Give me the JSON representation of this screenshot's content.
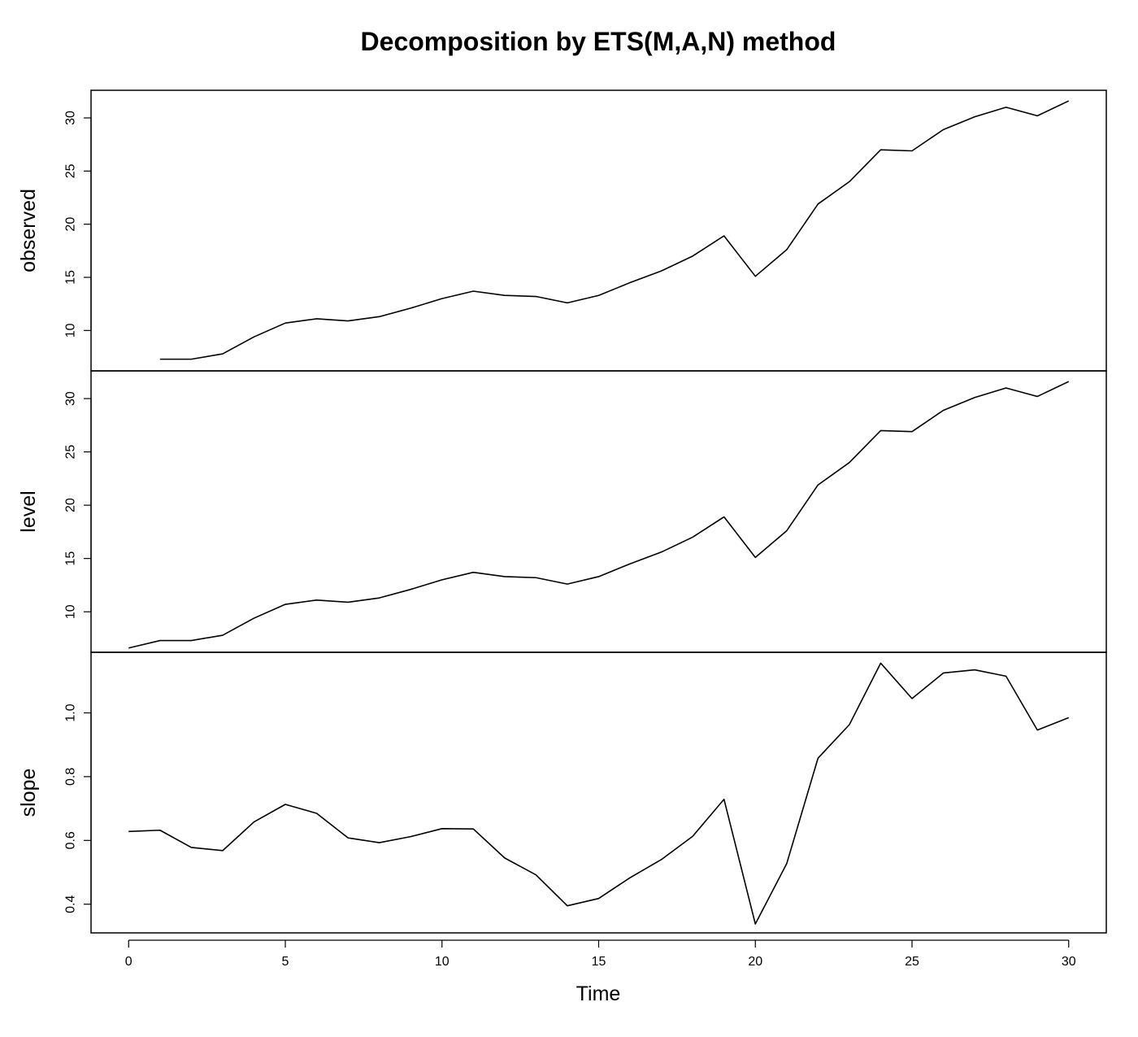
{
  "chart_data": {
    "type": "line",
    "title": "Decomposition by ETS(M,A,N) method",
    "xlabel": "Time",
    "x_ticks": [
      "0",
      "5",
      "10",
      "15",
      "20",
      "25",
      "30"
    ],
    "xlim": [
      -1.2,
      31.2
    ],
    "panels": [
      {
        "name": "observed",
        "ylim": [
          6.2,
          32.6
        ],
        "y_ticks": [
          "10",
          "15",
          "20",
          "25",
          "30"
        ],
        "x": [
          1,
          2,
          3,
          4,
          5,
          6,
          7,
          8,
          9,
          10,
          11,
          12,
          13,
          14,
          15,
          16,
          17,
          18,
          19,
          20,
          21,
          22,
          23,
          24,
          25,
          26,
          27,
          28,
          29,
          30
        ],
        "values": [
          7.3,
          7.3,
          7.8,
          9.4,
          10.7,
          11.1,
          10.9,
          11.3,
          12.1,
          13.0,
          13.7,
          13.3,
          13.2,
          12.6,
          13.3,
          14.5,
          15.6,
          17.0,
          18.9,
          15.1,
          17.6,
          21.9,
          24.0,
          27.0,
          26.9,
          28.9,
          30.1,
          31.0,
          30.2,
          31.6
        ]
      },
      {
        "name": "level",
        "ylim": [
          6.2,
          32.6
        ],
        "y_ticks": [
          "10",
          "15",
          "20",
          "25",
          "30"
        ],
        "x": [
          0,
          1,
          2,
          3,
          4,
          5,
          6,
          7,
          8,
          9,
          10,
          11,
          12,
          13,
          14,
          15,
          16,
          17,
          18,
          19,
          20,
          21,
          22,
          23,
          24,
          25,
          26,
          27,
          28,
          29,
          30
        ],
        "values": [
          6.6,
          7.3,
          7.3,
          7.8,
          9.4,
          10.7,
          11.1,
          10.9,
          11.3,
          12.1,
          13.0,
          13.7,
          13.3,
          13.2,
          12.6,
          13.3,
          14.5,
          15.6,
          17.0,
          18.9,
          15.1,
          17.6,
          21.9,
          24.0,
          27.0,
          26.9,
          28.9,
          30.1,
          31.0,
          30.2,
          31.6
        ]
      },
      {
        "name": "slope",
        "ylim": [
          0.31,
          1.19
        ],
        "y_ticks": [
          "0.4",
          "0.6",
          "0.8",
          "1.0"
        ],
        "x": [
          0,
          1,
          2,
          3,
          4,
          5,
          6,
          7,
          8,
          9,
          10,
          11,
          12,
          13,
          14,
          15,
          16,
          17,
          18,
          19,
          20,
          21,
          22,
          23,
          24,
          25,
          26,
          27,
          28,
          29,
          30
        ],
        "values": [
          0.628,
          0.632,
          0.578,
          0.568,
          0.658,
          0.713,
          0.685,
          0.608,
          0.593,
          0.612,
          0.637,
          0.636,
          0.545,
          0.492,
          0.395,
          0.418,
          0.483,
          0.54,
          0.613,
          0.729,
          0.338,
          0.527,
          0.858,
          0.963,
          1.156,
          1.045,
          1.125,
          1.135,
          1.115,
          0.946,
          0.985
        ]
      }
    ]
  }
}
